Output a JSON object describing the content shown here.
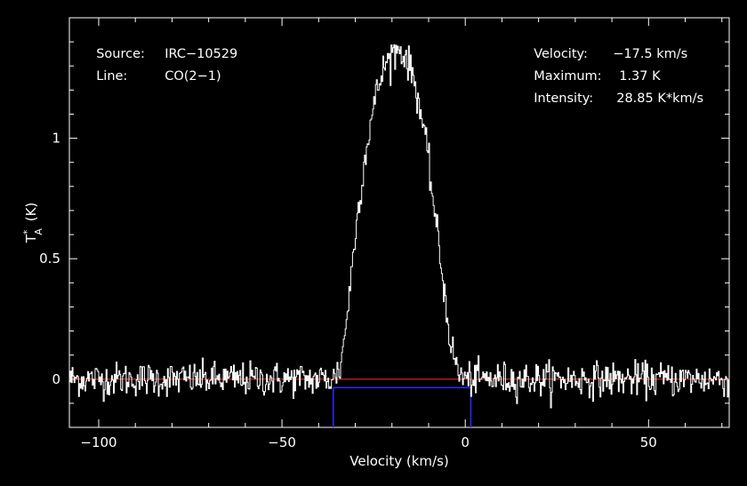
{
  "info_left": {
    "source_label": "Source:",
    "source_value": "IRC−10529",
    "line_label": "Line:",
    "line_value": "CO(2−1)"
  },
  "info_right": {
    "velocity_label": "Velocity:",
    "velocity_value": "−17.5 km/s",
    "maximum_label": "Maximum:",
    "maximum_value": "1.37 K",
    "intensity_label": "Intensity:",
    "intensity_value": "28.85 K*km/s"
  },
  "colors": {
    "background": "#000000",
    "axes": "#ffffff",
    "spectrum": "#ffffff",
    "baseline": "#ff2a2a",
    "window": "#2a2aff"
  },
  "chart_data": {
    "type": "line",
    "xlabel": "Velocity (km/s)",
    "ylabel": "T*A (K)",
    "xlim": [
      -108,
      72
    ],
    "ylim": [
      -0.2,
      1.5
    ],
    "x_ticks": [
      -100,
      -50,
      0,
      50
    ],
    "x_tick_labels": [
      "−100",
      "−50",
      "0",
      "50"
    ],
    "y_ticks": [
      0,
      0.5,
      1
    ],
    "y_tick_labels": [
      "0",
      "0.5",
      "1"
    ],
    "grid": false,
    "baseline_y": 0,
    "integration_window": {
      "x_start": -36,
      "x_end": 1.5,
      "y_level": -0.035
    },
    "noise_rms_k": 0.035,
    "series": [
      {
        "x": [
          -108,
          -36,
          -34,
          -32,
          -30,
          -28,
          -26,
          -24,
          -22,
          -20,
          -18,
          -16,
          -14,
          -12,
          -10,
          -8,
          -6,
          -4,
          -2,
          0,
          72
        ],
        "values": [
          0,
          0,
          0.05,
          0.3,
          0.6,
          0.85,
          1.05,
          1.2,
          1.3,
          1.35,
          1.37,
          1.33,
          1.25,
          1.1,
          0.9,
          0.65,
          0.4,
          0.15,
          0.03,
          0,
          0
        ]
      }
    ]
  }
}
